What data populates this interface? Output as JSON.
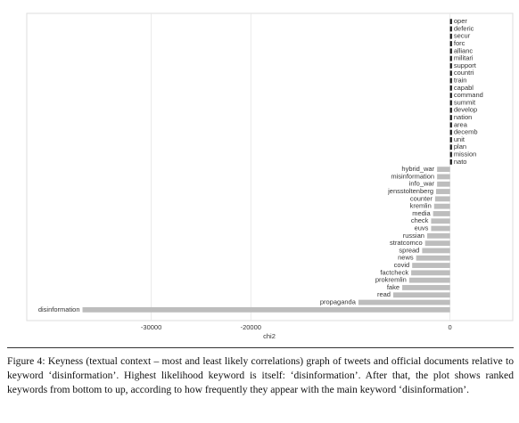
{
  "chart_data": {
    "type": "barh",
    "x_label": "chi2",
    "categories": [
      "disinformation",
      "propaganda",
      "read",
      "fake",
      "prokremlin",
      "factcheck",
      "covid",
      "news",
      "spread",
      "stratcomco",
      "russian",
      "euvs",
      "check",
      "media",
      "kremlin",
      "counter",
      "jensstoltenberg",
      "info_war",
      "misinformation",
      "hybrid_war",
      "nato",
      "mission",
      "plan",
      "unit",
      "decemb",
      "area",
      "nation",
      "develop",
      "summit",
      "command",
      "capabl",
      "train",
      "countri",
      "support",
      "militari",
      "allianc",
      "forc",
      "secur",
      "deferic",
      "oper"
    ],
    "values": [
      -36900,
      -9200,
      -5700,
      -4800,
      -4100,
      -3900,
      -3800,
      -3400,
      -2800,
      -2500,
      -2300,
      -1900,
      -1900,
      -1700,
      -1600,
      -1500,
      -1400,
      -1300,
      -1300,
      -1300,
      200,
      200,
      200,
      200,
      200,
      200,
      200,
      200,
      200,
      200,
      200,
      200,
      200,
      200,
      200,
      200,
      200,
      200,
      200,
      200
    ],
    "negative_color": "#bdbdbd",
    "positive_color": "#1a1a1a",
    "xlim": [
      -42500,
      6300
    ],
    "xticks": [
      -30000,
      -20000,
      0
    ],
    "grid": true
  },
  "caption": "Figure 4: Keyness (textual context – most and least likely correlations) graph of tweets and official documents relative to keyword ‘disinformation’. Highest likelihood keyword is itself: ‘disinformation’. After that, the plot shows ranked keywords from bottom to up, according to how frequently they appear with the main keyword ‘disinformation’."
}
